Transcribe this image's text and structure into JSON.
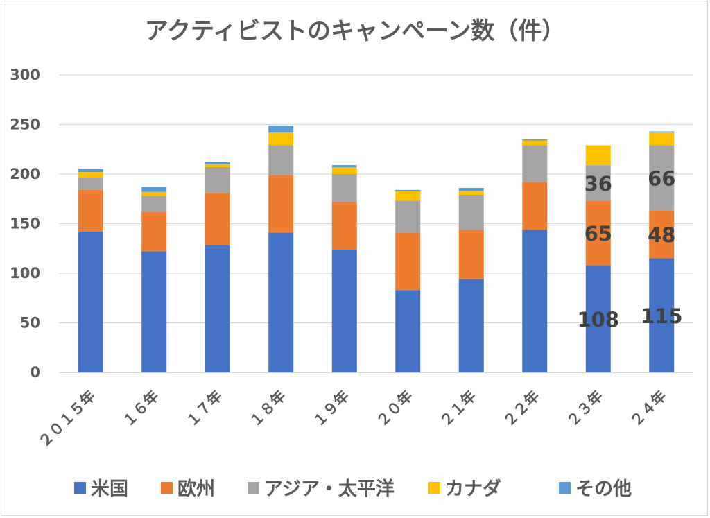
{
  "chart_data": {
    "type": "bar",
    "stacked": true,
    "title": "アクティビストのキャンペーン数（件）",
    "xlabel": "",
    "ylabel": "",
    "ylim": [
      0,
      300
    ],
    "yticks": [
      "0",
      "50",
      "100",
      "150",
      "200",
      "250",
      "300"
    ],
    "grid": true,
    "legend_position": "bottom",
    "categories": [
      "２０１５年",
      "１６年",
      "１７年",
      "１８年",
      "１９年",
      "２０年",
      "２１年",
      "２２年",
      "２３年",
      "２４年"
    ],
    "series": [
      {
        "name": "米国",
        "color": "#4472C4",
        "values": [
          142,
          122,
          128,
          141,
          124,
          83,
          94,
          144,
          108,
          115
        ]
      },
      {
        "name": "欧州",
        "color": "#ED7D31",
        "values": [
          42,
          40,
          53,
          58,
          48,
          58,
          50,
          48,
          65,
          48
        ]
      },
      {
        "name": "アジア・太平洋",
        "color": "#A5A5A5",
        "values": [
          13,
          16,
          26,
          30,
          28,
          32,
          35,
          37,
          36,
          66
        ]
      },
      {
        "name": "カナダ",
        "color": "#FFC000",
        "values": [
          5,
          4,
          3,
          13,
          7,
          10,
          4,
          5,
          20,
          13
        ]
      },
      {
        "name": "その他",
        "color": "#5B9BD5",
        "values": [
          3,
          5,
          2,
          7,
          2,
          1,
          3,
          1,
          0,
          1
        ]
      }
    ],
    "data_labels": [
      {
        "category": "２３年",
        "series": "米国",
        "text": "108"
      },
      {
        "category": "２３年",
        "series": "欧州",
        "text": "65"
      },
      {
        "category": "２３年",
        "series": "アジア・太平洋",
        "text": "36"
      },
      {
        "category": "２４年",
        "series": "米国",
        "text": "115"
      },
      {
        "category": "２４年",
        "series": "欧州",
        "text": "48"
      },
      {
        "category": "２４年",
        "series": "アジア・太平洋",
        "text": "66"
      }
    ]
  }
}
